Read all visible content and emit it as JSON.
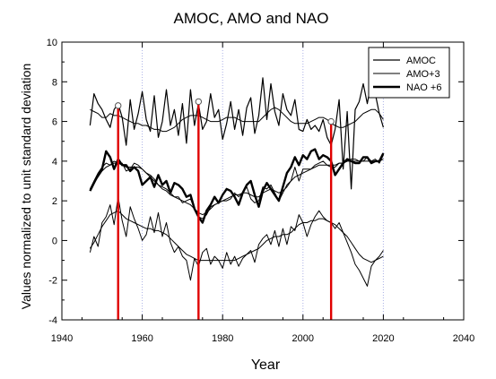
{
  "chart_data": {
    "type": "line",
    "title": "AMOC, AMO and NAO",
    "xlabel": "Year",
    "ylabel": "Values normalized to unit standard deviation",
    "xlim": [
      1940,
      2040
    ],
    "ylim": [
      -4,
      10
    ],
    "xticks": [
      1940,
      1960,
      1980,
      2000,
      2020,
      2040
    ],
    "yticks": [
      -4,
      -2,
      0,
      2,
      4,
      6,
      8,
      10
    ],
    "grid": "dotted vertical lines at 1960, 1980, 2000",
    "legend_placement": "top-right",
    "colors": {
      "series": "#000000",
      "markers": "#e00000",
      "grid": "#aab0e6"
    },
    "vertical_markers": [
      {
        "x": 1954,
        "y": 6.8
      },
      {
        "x": 1974,
        "y": 7.0
      },
      {
        "x": 2007,
        "y": 6.0
      }
    ],
    "series": [
      {
        "name": "AMOC",
        "stroke_width": 1.2,
        "x": [
          1947,
          1948,
          1949,
          1950,
          1951,
          1952,
          1953,
          1954,
          1955,
          1956,
          1957,
          1958,
          1959,
          1960,
          1961,
          1962,
          1963,
          1964,
          1965,
          1966,
          1967,
          1968,
          1969,
          1970,
          1971,
          1972,
          1973,
          1974,
          1975,
          1976,
          1977,
          1978,
          1979,
          1980,
          1981,
          1982,
          1983,
          1984,
          1985,
          1986,
          1987,
          1988,
          1989,
          1990,
          1991,
          1992,
          1993,
          1994,
          1995,
          1996,
          1997,
          1998,
          1999,
          2000,
          2001,
          2002,
          2003,
          2004,
          2005,
          2006,
          2007,
          2008,
          2009,
          2010,
          2011,
          2012,
          2013,
          2014,
          2015,
          2016,
          2017,
          2018,
          2019,
          2020
        ],
        "y": [
          5.8,
          7.4,
          6.9,
          6.6,
          6.1,
          5.7,
          6.6,
          6.9,
          6.2,
          4.8,
          7.1,
          5.6,
          6.4,
          7.5,
          6.1,
          5.5,
          7.3,
          5.2,
          6.0,
          7.6,
          5.8,
          6.6,
          5.3,
          6.9,
          4.9,
          7.6,
          5.8,
          6.9,
          5.6,
          6.0,
          7.4,
          6.2,
          6.6,
          5.1,
          5.9,
          7.0,
          5.6,
          6.6,
          5.3,
          6.7,
          7.2,
          5.4,
          6.3,
          8.2,
          6.1,
          7.9,
          6.5,
          5.8,
          7.4,
          6.6,
          6.3,
          7.1,
          5.6,
          5.5,
          6.1,
          5.6,
          5.8,
          5.5,
          6.1,
          5.2,
          4.8,
          5.6,
          7.1,
          3.6,
          6.5,
          2.6,
          6.6,
          7.0,
          7.9,
          6.9,
          8.0,
          7.4,
          6.4,
          5.7
        ],
        "smooth": [
          6.6,
          6.5,
          6.4,
          6.2,
          6.2,
          6.4,
          6.3,
          6.3,
          6.2,
          6.1,
          6.0,
          5.9,
          5.9,
          5.8,
          5.8,
          5.7,
          5.6,
          5.6,
          5.5,
          5.5,
          5.6,
          5.7,
          5.9,
          6.1,
          6.2,
          6.3,
          6.3,
          6.3,
          6.2,
          6.1,
          6.0,
          6.0,
          6.0,
          6.1,
          6.2,
          6.2,
          6.2,
          6.1,
          6.0,
          6.0,
          6.0,
          6.0,
          6.0,
          6.2,
          6.4,
          6.6,
          6.7,
          6.6,
          6.4,
          6.2,
          6.0,
          5.9,
          5.9,
          5.9,
          5.9,
          6.0,
          6.1,
          6.2,
          6.2,
          6.1,
          5.9,
          5.8,
          5.7,
          5.7,
          5.8,
          5.9,
          6.0,
          6.2,
          6.4,
          6.5,
          6.6,
          6.6,
          6.4,
          6.1
        ]
      },
      {
        "name": "AMO+3",
        "stroke_width": 1.0,
        "x": [
          1947,
          1948,
          1949,
          1950,
          1951,
          1952,
          1953,
          1954,
          1955,
          1956,
          1957,
          1958,
          1959,
          1960,
          1961,
          1962,
          1963,
          1964,
          1965,
          1966,
          1967,
          1968,
          1969,
          1970,
          1971,
          1972,
          1973,
          1974,
          1975,
          1976,
          1977,
          1978,
          1979,
          1980,
          1981,
          1982,
          1983,
          1984,
          1985,
          1986,
          1987,
          1988,
          1989,
          1990,
          1991,
          1992,
          1993,
          1994,
          1995,
          1996,
          1997,
          1998,
          1999,
          2000,
          2001,
          2002,
          2003,
          2004,
          2005,
          2006,
          2007,
          2008,
          2009,
          2010,
          2011,
          2012,
          2013,
          2014,
          2015,
          2016,
          2017,
          2018,
          2019,
          2020
        ],
        "y": [
          2.6,
          3.0,
          3.4,
          3.7,
          3.9,
          3.8,
          4.0,
          3.9,
          3.9,
          3.5,
          3.6,
          3.9,
          3.8,
          3.6,
          3.4,
          3.3,
          3.1,
          2.8,
          2.7,
          2.6,
          2.4,
          2.2,
          2.2,
          1.9,
          2.0,
          2.1,
          1.6,
          1.2,
          1.1,
          1.3,
          1.7,
          1.8,
          1.9,
          2.0,
          2.0,
          2.1,
          2.4,
          2.2,
          2.4,
          2.7,
          2.1,
          1.9,
          2.0,
          2.7,
          2.6,
          2.8,
          2.4,
          2.0,
          2.4,
          2.8,
          3.0,
          3.7,
          3.0,
          3.6,
          3.6,
          3.6,
          3.8,
          3.9,
          4.0,
          3.8,
          3.7,
          3.7,
          3.9,
          3.9,
          4.0,
          4.1,
          4.1,
          4.0,
          4.0,
          4.2,
          4.0,
          4.1,
          3.9,
          4.3
        ],
        "smooth": [
          2.6,
          2.9,
          3.2,
          3.5,
          3.7,
          3.8,
          3.9,
          3.9,
          3.8,
          3.7,
          3.7,
          3.7,
          3.7,
          3.6,
          3.4,
          3.2,
          3.0,
          2.8,
          2.6,
          2.5,
          2.3,
          2.2,
          2.1,
          2.0,
          1.9,
          1.8,
          1.6,
          1.4,
          1.3,
          1.4,
          1.6,
          1.8,
          1.9,
          2.0,
          2.1,
          2.2,
          2.3,
          2.3,
          2.4,
          2.4,
          2.3,
          2.2,
          2.2,
          2.4,
          2.5,
          2.6,
          2.5,
          2.4,
          2.5,
          2.7,
          3.0,
          3.2,
          3.3,
          3.4,
          3.5,
          3.6,
          3.7,
          3.8,
          3.8,
          3.8,
          3.8,
          3.8,
          3.9,
          3.9,
          4.0,
          4.0,
          4.0,
          4.0,
          4.0,
          4.0,
          4.0,
          4.0,
          4.0,
          4.1
        ]
      },
      {
        "name": "NAO +6",
        "stroke_width": 2.4,
        "x": [
          1947,
          1948,
          1949,
          1950,
          1951,
          1952,
          1953,
          1954,
          1955,
          1956,
          1957,
          1958,
          1959,
          1960,
          1961,
          1962,
          1963,
          1964,
          1965,
          1966,
          1967,
          1968,
          1969,
          1970,
          1971,
          1972,
          1973,
          1974,
          1975,
          1976,
          1977,
          1978,
          1979,
          1980,
          1981,
          1982,
          1983,
          1984,
          1985,
          1986,
          1987,
          1988,
          1989,
          1990,
          1991,
          1992,
          1993,
          1994,
          1995,
          1996,
          1997,
          1998,
          1999,
          2000,
          2001,
          2002,
          2003,
          2004,
          2005,
          2006,
          2007,
          2008,
          2009,
          2010,
          2011,
          2012,
          2013,
          2014,
          2015,
          2016,
          2017,
          2018,
          2019,
          2020
        ],
        "y": [
          2.5,
          2.9,
          3.3,
          3.6,
          4.5,
          4.2,
          3.6,
          4.1,
          3.8,
          3.8,
          3.5,
          3.7,
          3.5,
          2.8,
          3.0,
          3.2,
          2.7,
          3.3,
          2.8,
          3.0,
          2.4,
          2.9,
          2.8,
          2.6,
          2.2,
          2.3,
          1.6,
          1.2,
          0.9,
          1.5,
          1.8,
          2.2,
          1.9,
          2.3,
          2.6,
          2.5,
          2.2,
          1.8,
          2.4,
          2.8,
          3.0,
          2.3,
          1.7,
          2.5,
          2.9,
          2.6,
          2.3,
          2.0,
          2.7,
          3.4,
          3.7,
          4.2,
          3.8,
          4.3,
          4.1,
          4.5,
          4.6,
          4.1,
          4.3,
          4.2,
          4.0,
          3.3,
          3.6,
          3.9,
          4.1,
          4.0,
          3.9,
          3.9,
          4.2,
          4.2,
          3.9,
          4.0,
          4.0,
          4.4
        ],
        "smooth": []
      },
      {
        "name": "",
        "stroke_width": 1.0,
        "x": [
          1947,
          1948,
          1949,
          1950,
          1951,
          1952,
          1953,
          1954,
          1955,
          1956,
          1957,
          1958,
          1959,
          1960,
          1961,
          1962,
          1963,
          1964,
          1965,
          1966,
          1967,
          1968,
          1969,
          1970,
          1971,
          1972,
          1973,
          1974,
          1975,
          1976,
          1977,
          1978,
          1979,
          1980,
          1981,
          1982,
          1983,
          1984,
          1985,
          1986,
          1987,
          1988,
          1989,
          1990,
          1991,
          1992,
          1993,
          1994,
          1995,
          1996,
          1997,
          1998,
          1999,
          2000,
          2001,
          2002,
          2003,
          2004,
          2005,
          2006,
          2007,
          2008,
          2009,
          2010,
          2011,
          2012,
          2013,
          2014,
          2015,
          2016,
          2017,
          2018,
          2019,
          2020
        ],
        "y": [
          -0.6,
          0.2,
          -0.3,
          0.9,
          1.2,
          1.8,
          0.8,
          2.2,
          1.0,
          0.2,
          1.7,
          1.1,
          0.6,
          0.0,
          0.3,
          1.2,
          0.4,
          1.4,
          0.2,
          0.9,
          -0.1,
          -0.6,
          -0.3,
          -0.8,
          -1.0,
          -2.0,
          -0.9,
          -1.3,
          -0.6,
          -0.4,
          -1.2,
          -0.8,
          -1.0,
          -1.4,
          -0.6,
          -1.2,
          -0.8,
          -1.3,
          -0.9,
          -0.7,
          -0.5,
          -1.1,
          -0.2,
          0.1,
          0.3,
          -0.2,
          0.5,
          -0.3,
          0.6,
          -0.2,
          0.7,
          0.5,
          1.3,
          0.9,
          0.2,
          0.8,
          1.2,
          1.5,
          1.2,
          1.0,
          0.9,
          0.6,
          0.9,
          0.4,
          -0.1,
          -0.6,
          -1.2,
          -1.5,
          -1.9,
          -2.3,
          -1.3,
          -1.0,
          -0.8,
          -0.5
        ],
        "smooth": [
          -0.4,
          -0.1,
          0.3,
          0.7,
          1.0,
          1.3,
          1.4,
          1.5,
          1.3,
          1.1,
          1.0,
          0.9,
          0.8,
          0.7,
          0.6,
          0.6,
          0.5,
          0.5,
          0.4,
          0.3,
          0.1,
          -0.1,
          -0.3,
          -0.5,
          -0.7,
          -0.8,
          -0.9,
          -1.0,
          -1.0,
          -1.0,
          -1.0,
          -1.0,
          -1.0,
          -1.0,
          -1.0,
          -1.0,
          -1.0,
          -0.9,
          -0.8,
          -0.7,
          -0.6,
          -0.5,
          -0.4,
          -0.2,
          0.0,
          0.1,
          0.2,
          0.2,
          0.3,
          0.3,
          0.4,
          0.6,
          0.8,
          0.9,
          0.9,
          1.0,
          1.0,
          1.1,
          1.1,
          1.0,
          0.9,
          0.8,
          0.6,
          0.4,
          0.2,
          -0.1,
          -0.4,
          -0.7,
          -0.9,
          -1.0,
          -1.1,
          -1.0,
          -0.9,
          -0.8
        ]
      }
    ]
  }
}
